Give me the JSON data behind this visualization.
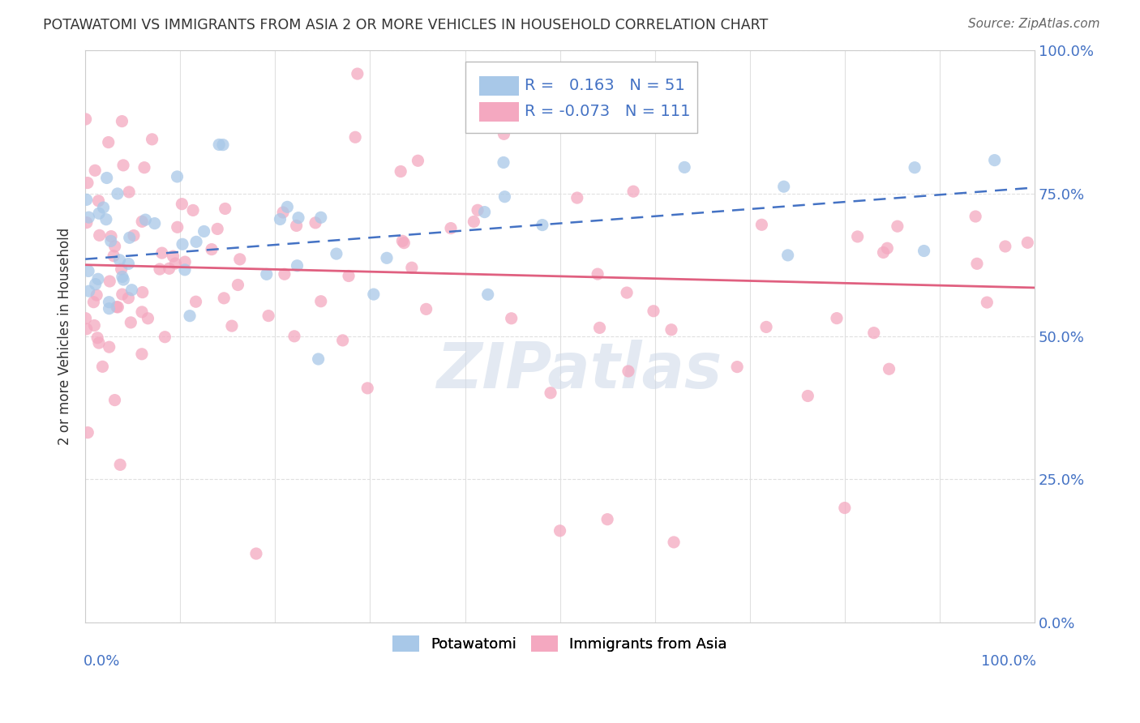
{
  "title": "POTAWATOMI VS IMMIGRANTS FROM ASIA 2 OR MORE VEHICLES IN HOUSEHOLD CORRELATION CHART",
  "source": "Source: ZipAtlas.com",
  "ylabel": "2 or more Vehicles in Household",
  "yaxis_labels": [
    "0.0%",
    "25.0%",
    "50.0%",
    "75.0%",
    "100.0%"
  ],
  "legend_items": [
    {
      "label": "Potawatomi",
      "color": "#a8c8e8",
      "R": 0.163,
      "N": 51
    },
    {
      "label": "Immigrants from Asia",
      "color": "#f4a8c0",
      "R": -0.073,
      "N": 111
    }
  ],
  "watermark": "ZIPatlas",
  "xlim": [
    0.0,
    1.0
  ],
  "ylim": [
    0.0,
    1.0
  ],
  "title_color": "#333333",
  "source_color": "#666666",
  "axis_label_color": "#4472c4",
  "scatter_blue_color": "#a8c8e8",
  "scatter_pink_color": "#f4a8c0",
  "line_blue_color": "#4472c4",
  "line_pink_color": "#e06080",
  "legend_R_color": "#4472c4",
  "grid_color": "#e0e0e0",
  "background_color": "#ffffff",
  "blue_line_x0": 0.0,
  "blue_line_x1": 1.0,
  "blue_line_y0": 0.635,
  "blue_line_y1": 0.76,
  "blue_line_dashed": true,
  "pink_line_x0": 0.0,
  "pink_line_x1": 1.0,
  "pink_line_y0": 0.625,
  "pink_line_y1": 0.585,
  "pink_line_dashed": false
}
